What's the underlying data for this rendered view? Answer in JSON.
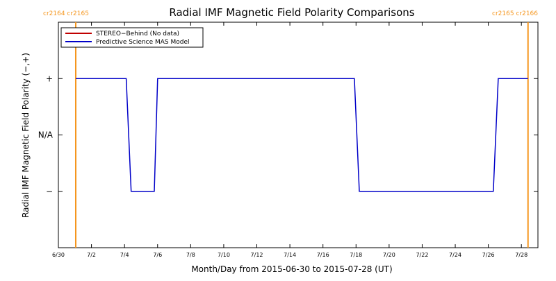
{
  "chart_data": {
    "type": "line",
    "title": "Radial IMF Magnetic Field Polarity Comparisons",
    "xlabel": "Month/Day from 2015-06-30 to 2015-07-28 (UT)",
    "ylabel": "Radial IMF Magnetic Field Polarity (−,+)",
    "xlim": [
      0,
      29
    ],
    "ylim": [
      -2,
      2
    ],
    "x_ticks": [
      {
        "day": 0,
        "label": "6/30"
      },
      {
        "day": 2,
        "label": "7/2"
      },
      {
        "day": 4,
        "label": "7/4"
      },
      {
        "day": 6,
        "label": "7/6"
      },
      {
        "day": 8,
        "label": "7/8"
      },
      {
        "day": 10,
        "label": "7/10"
      },
      {
        "day": 12,
        "label": "7/12"
      },
      {
        "day": 14,
        "label": "7/14"
      },
      {
        "day": 16,
        "label": "7/16"
      },
      {
        "day": 18,
        "label": "7/18"
      },
      {
        "day": 20,
        "label": "7/20"
      },
      {
        "day": 22,
        "label": "7/22"
      },
      {
        "day": 24,
        "label": "7/24"
      },
      {
        "day": 26,
        "label": "7/26"
      },
      {
        "day": 28,
        "label": "7/28"
      }
    ],
    "y_ticks": [
      {
        "value": 1,
        "label": "+"
      },
      {
        "value": 0,
        "label": "N/A"
      },
      {
        "value": -1,
        "label": "−"
      }
    ],
    "rotation_markers": [
      {
        "day": 1.05,
        "label": "cr2164 cr2165",
        "color": "#f5961e",
        "anchor": "left"
      },
      {
        "day": 28.4,
        "label": "cr2165 cr2166",
        "color": "#f5961e",
        "anchor": "right"
      }
    ],
    "legend": {
      "position": "top-left",
      "entries": [
        {
          "name": "STEREO−Behind (No data)",
          "color": "#c00000"
        },
        {
          "name": "Predictive Science MAS Model",
          "color": "#0000c8"
        }
      ]
    },
    "series": [
      {
        "name": "STEREO−Behind (No data)",
        "color": "#c00000",
        "x": [],
        "y": []
      },
      {
        "name": "Predictive Science MAS Model",
        "color": "#0000c8",
        "x": [
          1.05,
          4.1,
          4.4,
          5.8,
          6.0,
          17.9,
          18.2,
          26.3,
          26.6,
          28.4
        ],
        "y": [
          1,
          1,
          -1,
          -1,
          1,
          1,
          -1,
          -1,
          1,
          1
        ]
      }
    ]
  }
}
